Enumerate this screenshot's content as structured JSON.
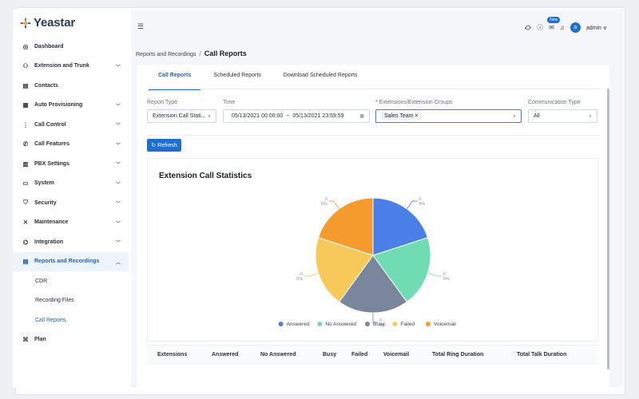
{
  "brand": {
    "name": "Yeastar"
  },
  "sidebar": {
    "items": [
      {
        "label": "Dashboard",
        "icon": "dashboard-icon",
        "glyph": "◎",
        "chevron": false
      },
      {
        "label": "Extension and Trunk",
        "icon": "user-group-icon",
        "glyph": "⚇",
        "chevron": true
      },
      {
        "label": "Contacts",
        "icon": "contacts-icon",
        "glyph": "▤",
        "chevron": false
      },
      {
        "label": "Auto Provisioning",
        "icon": "provisioning-icon",
        "glyph": "▦",
        "chevron": true
      },
      {
        "label": "Call Control",
        "icon": "call-control-icon",
        "glyph": "⋮",
        "chevron": true
      },
      {
        "label": "Call Features",
        "icon": "phone-icon",
        "glyph": "✆",
        "chevron": true
      },
      {
        "label": "PBX Settings",
        "icon": "settings-grid-icon",
        "glyph": "▥",
        "chevron": true
      },
      {
        "label": "System",
        "icon": "system-icon",
        "glyph": "▭",
        "chevron": true
      },
      {
        "label": "Security",
        "icon": "shield-icon",
        "glyph": "⛉",
        "chevron": true
      },
      {
        "label": "Maintenance",
        "icon": "tools-icon",
        "glyph": "✕",
        "chevron": true
      },
      {
        "label": "Integration",
        "icon": "integration-icon",
        "glyph": "⌬",
        "chevron": true
      },
      {
        "label": "Reports and Recordings",
        "icon": "reports-icon",
        "glyph": "▤",
        "chevron": true,
        "expanded": true
      }
    ],
    "sub_items": [
      "CDR",
      "Recording Files",
      "Call Reports"
    ],
    "plan": {
      "label": "Plan",
      "icon": "plan-icon",
      "glyph": "⌘"
    }
  },
  "topbar": {
    "new_badge": "New",
    "user": "admin",
    "avatar_letter": "a"
  },
  "breadcrumb": {
    "parent": "Reports and Recordings",
    "current": "Call Reports"
  },
  "tabs": [
    "Call Reports",
    "Scheduled Reports",
    "Download Scheduled Reports"
  ],
  "filters": {
    "report_type": {
      "label": "Report Type",
      "value": "Extension Call Stati..."
    },
    "time": {
      "label": "Time",
      "start": "05/13/2021 00:00:00",
      "end": "05/13/2021 23:59:59",
      "separator": "~"
    },
    "extensions": {
      "label": "Extensions/Extension Groups",
      "required_mark": "*",
      "tag": "Sales Team"
    },
    "comm_type": {
      "label": "Communication Type",
      "value": "All"
    }
  },
  "refresh_label": "Refresh",
  "chart_data": {
    "type": "pie",
    "title": "Extension Call Statistics",
    "categories": [
      "Answered",
      "No Answered",
      "Busy",
      "Failed",
      "Voicemail"
    ],
    "values": [
      0,
      0,
      0,
      0,
      0
    ],
    "slice_labels": [
      "0\n0%",
      "0\n0%",
      "0\n0%",
      "0\n0%",
      "0\n0%"
    ],
    "colors": [
      "#4a7fe8",
      "#6fdcb4",
      "#7a869b",
      "#f7c95a",
      "#f59b2e"
    ],
    "legend": "bottom"
  },
  "table": {
    "headers": [
      "Extensions",
      "Answered",
      "No Answered",
      "Busy",
      "Failed",
      "Voicemail",
      "Total Ring Duration",
      "Total Talk Duration"
    ]
  }
}
